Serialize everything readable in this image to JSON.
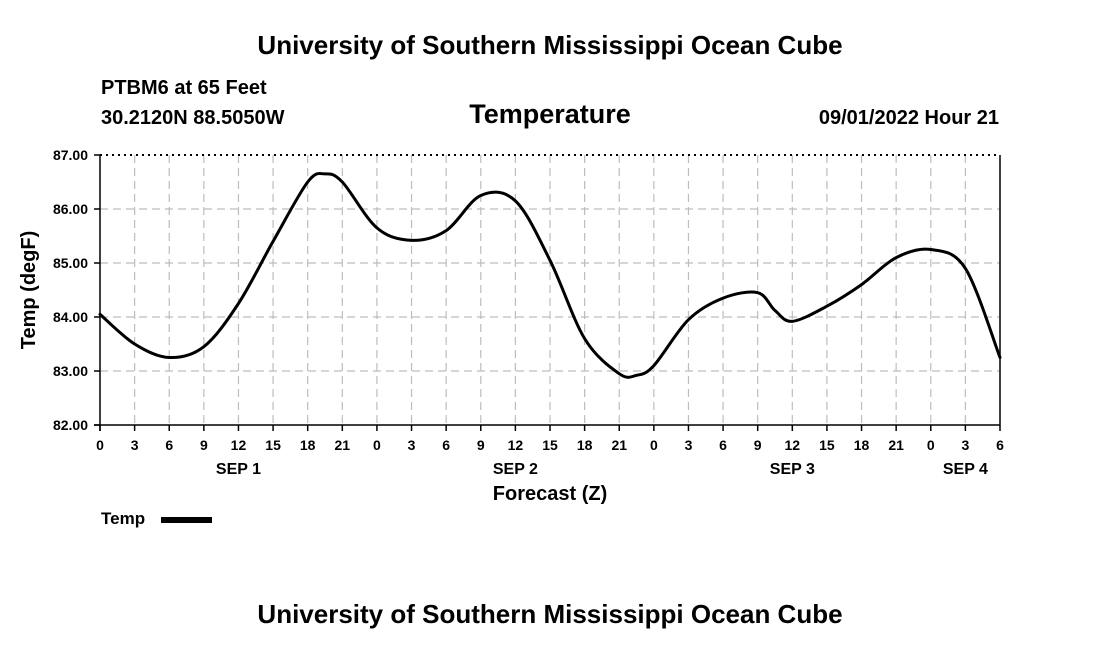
{
  "header": {
    "title_top": "University of Southern Mississippi Ocean Cube",
    "title_bottom": "University of Southern Mississippi Ocean Cube",
    "station": "PTBM6 at 65 Feet",
    "coords": "30.2120N  88.5050W",
    "timestamp": "09/01/2022 Hour 21"
  },
  "chart_data": {
    "type": "line",
    "title": "Temperature",
    "xlabel": "Forecast (Z)",
    "ylabel": "Temp (degF)",
    "ylim": [
      82.0,
      87.0
    ],
    "yticks": [
      "82.00",
      "83.00",
      "84.00",
      "85.00",
      "86.00",
      "87.00"
    ],
    "ytick_values": [
      82,
      83,
      84,
      85,
      86,
      87
    ],
    "xlim": [
      0,
      78
    ],
    "xtick_labels": [
      "0",
      "3",
      "6",
      "9",
      "12",
      "15",
      "18",
      "21",
      "0",
      "3",
      "6",
      "9",
      "12",
      "15",
      "18",
      "21",
      "0",
      "3",
      "6",
      "9",
      "12",
      "15",
      "18",
      "21",
      "0",
      "3",
      "6"
    ],
    "date_labels": [
      {
        "label": "SEP 1",
        "hour": 12
      },
      {
        "label": "SEP 2",
        "hour": 36
      },
      {
        "label": "SEP 3",
        "hour": 60
      },
      {
        "label": "SEP 4",
        "hour": 75
      }
    ],
    "grid": true,
    "series": [
      {
        "name": "Temp",
        "color": "#000000",
        "x": [
          0,
          3,
          6,
          9,
          12,
          15,
          18,
          19.5,
          21,
          24,
          27,
          30,
          33,
          36,
          39,
          42,
          45,
          46.5,
          48,
          51,
          54,
          57,
          58.5,
          60,
          63,
          66,
          69,
          72,
          75,
          78
        ],
        "y": [
          84.05,
          83.5,
          83.25,
          83.45,
          84.25,
          85.4,
          86.5,
          86.65,
          86.5,
          85.65,
          85.42,
          85.6,
          86.25,
          86.15,
          85.05,
          83.6,
          82.95,
          82.92,
          83.1,
          83.95,
          84.35,
          84.45,
          84.12,
          83.92,
          84.2,
          84.6,
          85.1,
          85.25,
          84.9,
          83.25
        ]
      }
    ]
  },
  "legend": {
    "label": "Temp"
  }
}
